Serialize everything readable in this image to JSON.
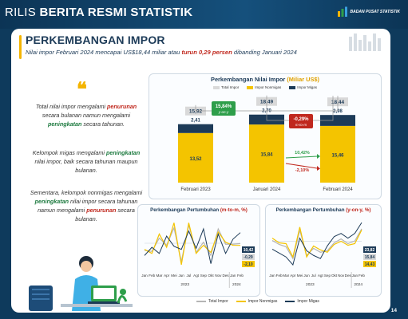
{
  "header": {
    "title_plain": "RILIS",
    "title_bold": "BERITA RESMI STATISTIK",
    "agency": "BADAN PUSAT STATISTIK"
  },
  "slide": {
    "title": "PERKEMBANGAN IMPOR",
    "subtitle_a": "Nilai impor Februari 2024 mencapai US$18,44 miliar atau ",
    "subtitle_red": "turun 0,29 persen",
    "subtitle_b": " dibanding Januari 2024",
    "quote_mark": "❝",
    "para1": [
      {
        "t": "Total nilai impor mengalami ",
        "c": ""
      },
      {
        "t": "penurunan",
        "c": "red"
      },
      {
        "t": " secara bulanan namun mengalami ",
        "c": ""
      },
      {
        "t": "peningkatan",
        "c": "green"
      },
      {
        "t": " secara tahunan.",
        "c": ""
      }
    ],
    "para2": [
      {
        "t": "Kelompok migas mengalami ",
        "c": ""
      },
      {
        "t": "peningkatan",
        "c": "green"
      },
      {
        "t": " nilai impor, baik secara tahunan maupun bulanan.",
        "c": ""
      }
    ],
    "para3": [
      {
        "t": "Sementara, kelompok nonmigas mengalami ",
        "c": ""
      },
      {
        "t": "peningkatan",
        "c": "green"
      },
      {
        "t": " nilai impor secara tahunan namun mengalami ",
        "c": ""
      },
      {
        "t": "penurunan",
        "c": "red"
      },
      {
        "t": " secara bulanan.",
        "c": ""
      }
    ],
    "page_number": "14"
  },
  "colors": {
    "total": "#d9d9d9",
    "nonmigas": "#f4c400",
    "migas": "#1d3b58",
    "red": "#c0281e",
    "green": "#2e9e4a"
  },
  "chart_data": [
    {
      "type": "bar",
      "title_a": "Perkembangan Nilai Impor ",
      "title_b": "(Miliar US$)",
      "legend": [
        "Total Impor",
        "Impor Nonmigas",
        "Impor Migas"
      ],
      "categories": [
        "Februari 2023",
        "Januari 2024",
        "Februari 2024"
      ],
      "total": [
        "15,92",
        "18,49",
        "18,44"
      ],
      "series": [
        {
          "name": "Impor Nonmigas",
          "values": [
            13.52,
            15.84,
            15.46
          ],
          "labels": [
            "13,52",
            "15,84",
            "15,46"
          ]
        },
        {
          "name": "Impor Migas",
          "values": [
            2.41,
            2.7,
            2.98
          ],
          "labels": [
            "2,41",
            "2,70",
            "2,98"
          ]
        }
      ],
      "annotations": {
        "yoy_value": "15,84%",
        "yoy_label": "y-on-y",
        "mtm_value": "-0,29%",
        "mtm_label": "m-to-m",
        "migas_change": "10,42%",
        "nonmigas_change": "-2,10%"
      },
      "ylim": [
        0,
        20
      ]
    },
    {
      "type": "line",
      "title_a": "Perkembangan Pertumbuhan ",
      "title_b": "(m-to-m, %)",
      "x": [
        "Jan",
        "Feb",
        "Mar",
        "Apr",
        "Mei",
        "Jun",
        "Jul",
        "Agt",
        "Sep",
        "Okt",
        "Nov",
        "Des",
        "Jan",
        "Feb"
      ],
      "years": [
        "2023",
        "2024"
      ],
      "series": [
        {
          "name": "Total Impor",
          "values": [
            -7,
            -8,
            5,
            -2,
            15,
            -18,
            18,
            -9,
            1,
            -12,
            14,
            -1,
            -1,
            -0.3
          ]
        },
        {
          "name": "Impor Nonmigas",
          "values": [
            -6,
            -10,
            9,
            -4,
            20,
            -21,
            20,
            -10,
            -2,
            -9,
            11,
            1,
            -2,
            -2.1
          ]
        },
        {
          "name": "Impor Migas",
          "values": [
            -12,
            -4,
            -10,
            7,
            -3,
            -6,
            12,
            -5,
            14,
            -20,
            9,
            -10,
            4,
            10.4
          ]
        }
      ],
      "end_labels": [
        "10,42",
        "-0,29",
        "-2,10"
      ],
      "ylim": [
        -25,
        25
      ]
    },
    {
      "type": "line",
      "title_a": "Perkembangan Pertumbuhan ",
      "title_b": "(y-on-y, %)",
      "x": [
        "Jan",
        "Feb",
        "Mar",
        "Apr",
        "Mei",
        "Jun",
        "Jul",
        "Agt",
        "Sep",
        "Okt",
        "Nov",
        "Des",
        "Jan",
        "Feb"
      ],
      "years": [
        "2023",
        "2024"
      ],
      "series": [
        {
          "name": "Total Impor",
          "values": [
            1,
            -4,
            -7,
            -22,
            14,
            -18,
            -9,
            -14,
            -12,
            -2,
            3,
            -3,
            0.4,
            15.8
          ]
        },
        {
          "name": "Impor Nonmigas",
          "values": [
            4,
            -2,
            -3,
            -20,
            18,
            -20,
            -6,
            -11,
            -14,
            -4,
            0,
            -5,
            -3,
            14.4
          ]
        },
        {
          "name": "Impor Migas",
          "values": [
            -10,
            -15,
            -20,
            -30,
            4,
            -12,
            -18,
            -22,
            -6,
            6,
            10,
            4,
            10,
            23.8
          ]
        }
      ],
      "end_labels": [
        "23,82",
        "15,84",
        "14,43"
      ],
      "ylim": [
        -35,
        30
      ]
    }
  ]
}
